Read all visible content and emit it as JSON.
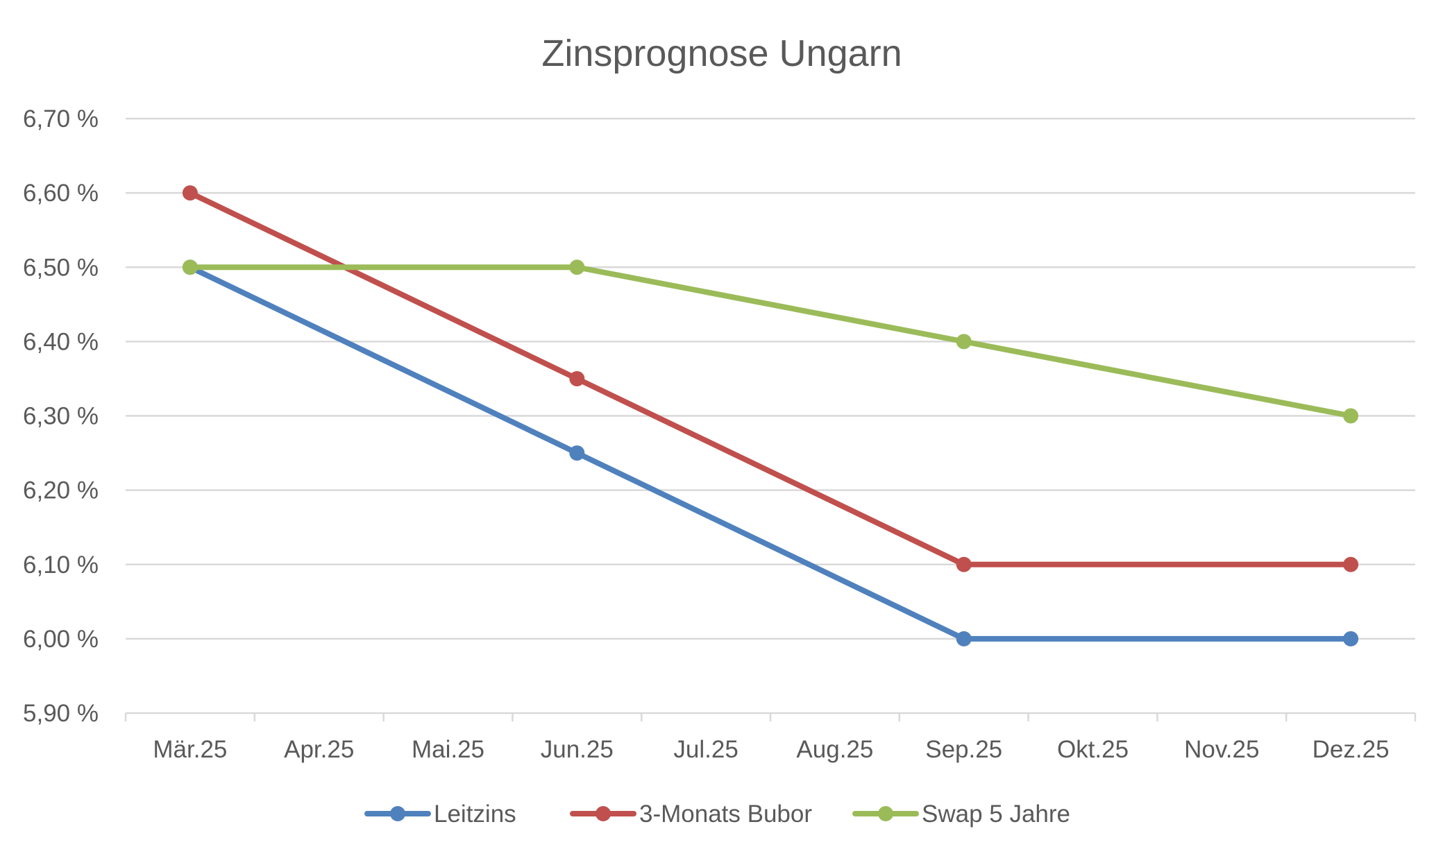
{
  "chart_data": {
    "type": "line",
    "title": "Zinsprognose Ungarn",
    "xlabel": "",
    "ylabel": "",
    "categories": [
      "Mär.25",
      "Apr.25",
      "Mai.25",
      "Jun.25",
      "Jul.25",
      "Aug.25",
      "Sep.25",
      "Okt.25",
      "Nov.25",
      "Dez.25"
    ],
    "y_ticks": [
      "6,70 %",
      "6,60 %",
      "6,50 %",
      "6,40 %",
      "6,30 %",
      "6,20 %",
      "6,10 %",
      "6,00 %",
      "5,90 %"
    ],
    "ylim": [
      5.9,
      6.7
    ],
    "grid": true,
    "legend_position": "bottom",
    "series": [
      {
        "name": "Leitzins",
        "color": "#4f81bd",
        "values": [
          6.5,
          null,
          null,
          6.25,
          null,
          null,
          6.0,
          null,
          null,
          6.0
        ]
      },
      {
        "name": "3-Monats Bubor",
        "color": "#c0504d",
        "values": [
          6.6,
          null,
          null,
          6.35,
          null,
          null,
          6.1,
          null,
          null,
          6.1
        ]
      },
      {
        "name": "Swap 5 Jahre",
        "color": "#9bbb59",
        "values": [
          6.5,
          null,
          null,
          6.5,
          null,
          null,
          6.4,
          null,
          null,
          6.3
        ]
      }
    ]
  }
}
